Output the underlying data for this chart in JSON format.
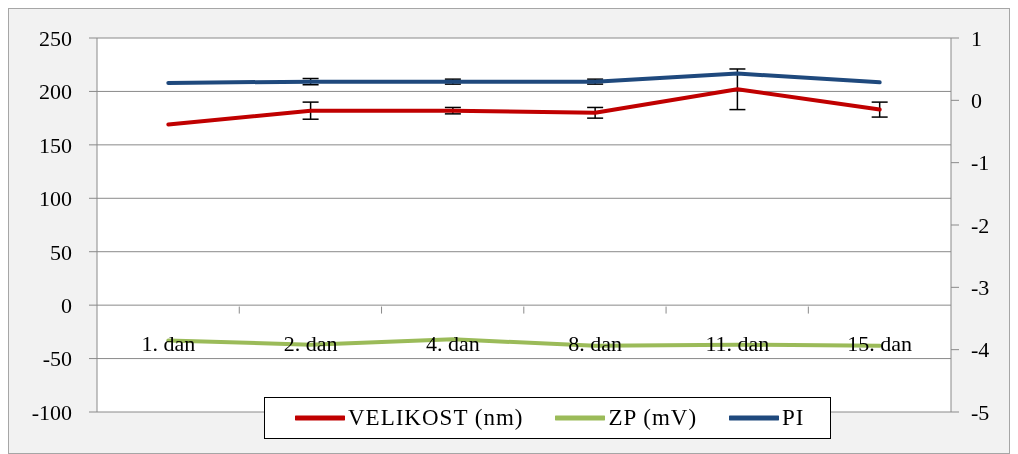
{
  "chart_data": {
    "type": "line",
    "categories": [
      "1. dan",
      "2. dan",
      "4. dan",
      "8. dan",
      "11. dan",
      "15. dan"
    ],
    "series": [
      {
        "name": "VELIKOST (nm)",
        "color": "#c00000",
        "values": [
          169,
          182,
          182,
          180,
          202,
          183
        ],
        "errors": [
          null,
          8,
          3,
          5,
          19,
          7
        ]
      },
      {
        "name": "ZP (mV)",
        "color": "#9bbb59",
        "values": [
          -33,
          -37,
          -32,
          -38,
          -37,
          -38
        ]
      },
      {
        "name": "PI",
        "color": "#1f497d",
        "axis": "y2",
        "values": [
          0.28,
          0.3,
          0.3,
          0.3,
          0.43,
          0.29
        ],
        "errors": [
          null,
          0.05,
          0.04,
          0.04,
          null,
          null
        ]
      }
    ],
    "ylim": [
      -100,
      250
    ],
    "yticks": [
      -100,
      -50,
      0,
      50,
      100,
      150,
      200,
      250
    ],
    "y2lim": [
      -5,
      1
    ],
    "y2ticks": [
      -5,
      -4,
      -3,
      -2,
      -1,
      0,
      1
    ],
    "grid": "y",
    "legend": "bottom",
    "marker": "none",
    "line_style": "solid"
  }
}
